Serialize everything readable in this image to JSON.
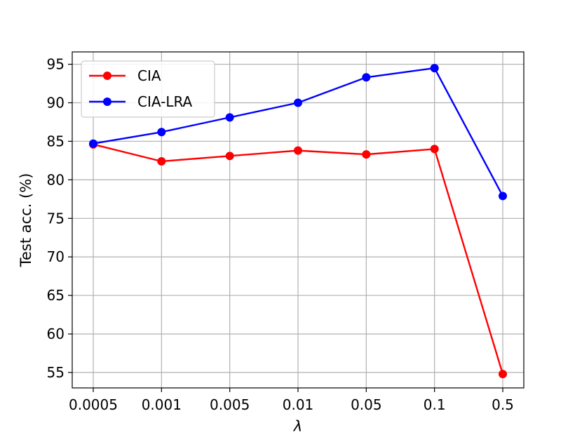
{
  "chart_data": {
    "type": "line",
    "categories": [
      "0.0005",
      "0.001",
      "0.005",
      "0.01",
      "0.05",
      "0.1",
      "0.5"
    ],
    "series": [
      {
        "name": "CIA",
        "color": "#ff0000",
        "values": [
          84.6,
          82.4,
          83.1,
          83.8,
          83.3,
          84.0,
          54.8
        ]
      },
      {
        "name": "CIA-LRA",
        "color": "#0000ff",
        "values": [
          84.7,
          86.2,
          88.1,
          90.0,
          93.3,
          94.5,
          77.9
        ]
      }
    ],
    "xlabel": "λ",
    "ylabel": "Test acc. (%)",
    "ylim": [
      53,
      96.6
    ],
    "yticks": [
      55,
      60,
      65,
      70,
      75,
      80,
      85,
      90,
      95
    ],
    "grid": true,
    "legend_position": "top-left"
  }
}
